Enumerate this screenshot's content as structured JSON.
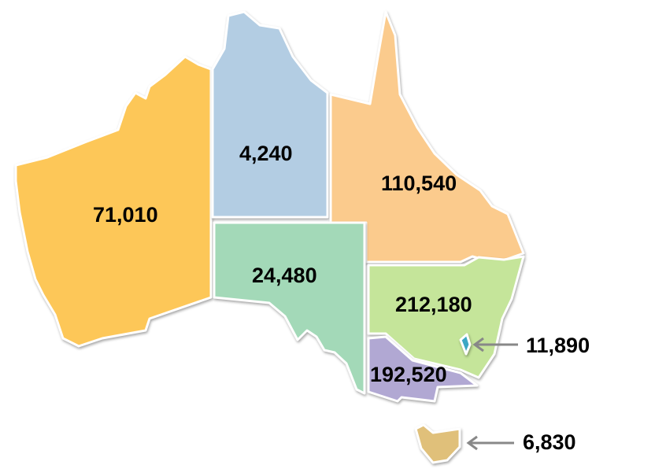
{
  "regions": [
    {
      "id": "wa",
      "value": "71,010",
      "color": "#FDC758"
    },
    {
      "id": "nt",
      "value": "4,240",
      "color": "#B3CDE3"
    },
    {
      "id": "qld",
      "value": "110,540",
      "color": "#FBCB8D"
    },
    {
      "id": "sa",
      "value": "24,480",
      "color": "#A3D9B8"
    },
    {
      "id": "nsw",
      "value": "212,180",
      "color": "#C5E59A"
    },
    {
      "id": "vic",
      "value": "192,520",
      "color": "#B1A8D3"
    },
    {
      "id": "act",
      "value": "11,890",
      "color": "#3BA7C4"
    },
    {
      "id": "tas",
      "value": "6,830",
      "color": "#E0C07A"
    }
  ],
  "arrow_color": "#888888"
}
